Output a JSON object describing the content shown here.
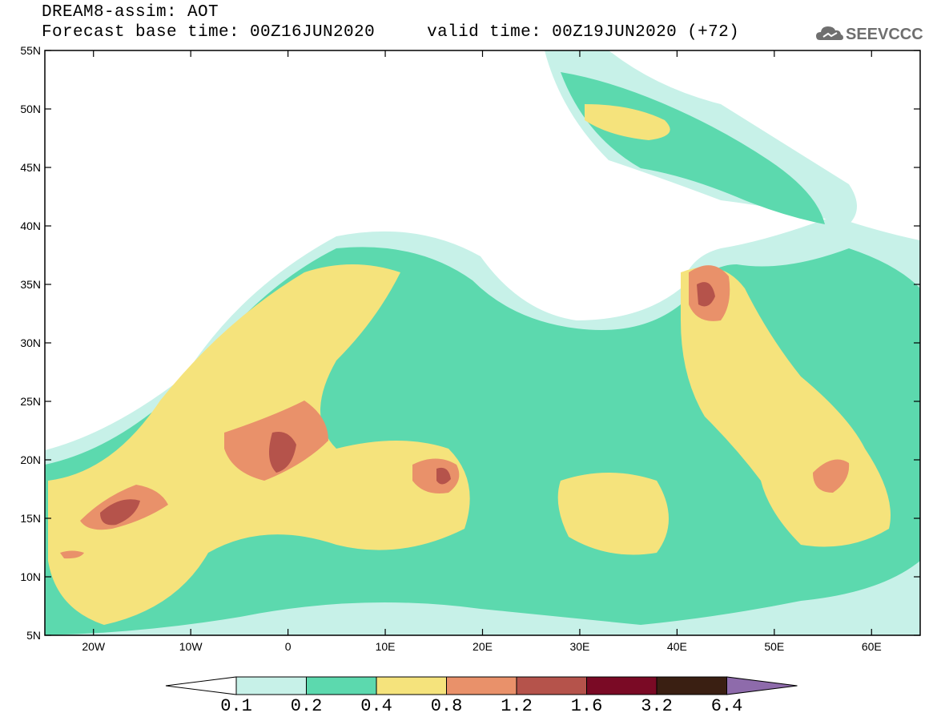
{
  "header": {
    "title_line1": "DREAM8-assim: AOT",
    "title_line2": "Forecast base time: 00Z16JUN2020     valid time: 00Z19JUN2020 (+72)"
  },
  "logo": {
    "text": "SEEVCCC",
    "icon": "cloud-icon"
  },
  "map": {
    "lon_range": [
      -25,
      65
    ],
    "lat_range": [
      5,
      55
    ],
    "lat_labels": [
      "55N",
      "50N",
      "45N",
      "40N",
      "35N",
      "30N",
      "25N",
      "20N",
      "15N",
      "10N",
      "5N"
    ],
    "lat_values": [
      55,
      50,
      45,
      40,
      35,
      30,
      25,
      20,
      15,
      10,
      5
    ],
    "lon_labels": [
      "20W",
      "10W",
      "0",
      "10E",
      "20E",
      "30E",
      "40E",
      "50E",
      "60E"
    ],
    "lon_values": [
      -20,
      -10,
      0,
      10,
      20,
      30,
      40,
      50,
      60
    ]
  },
  "colorbar": {
    "levels": [
      "0.1",
      "0.2",
      "0.4",
      "0.8",
      "1.2",
      "1.6",
      "3.2",
      "6.4"
    ],
    "colors": [
      "#c7f1e8",
      "#5cd9ae",
      "#f5e37c",
      "#e9916a",
      "#b5534b",
      "#7a0a25",
      "#3a1f12"
    ],
    "under_color": "#ffffff",
    "over_color": "#8e6bab"
  }
}
